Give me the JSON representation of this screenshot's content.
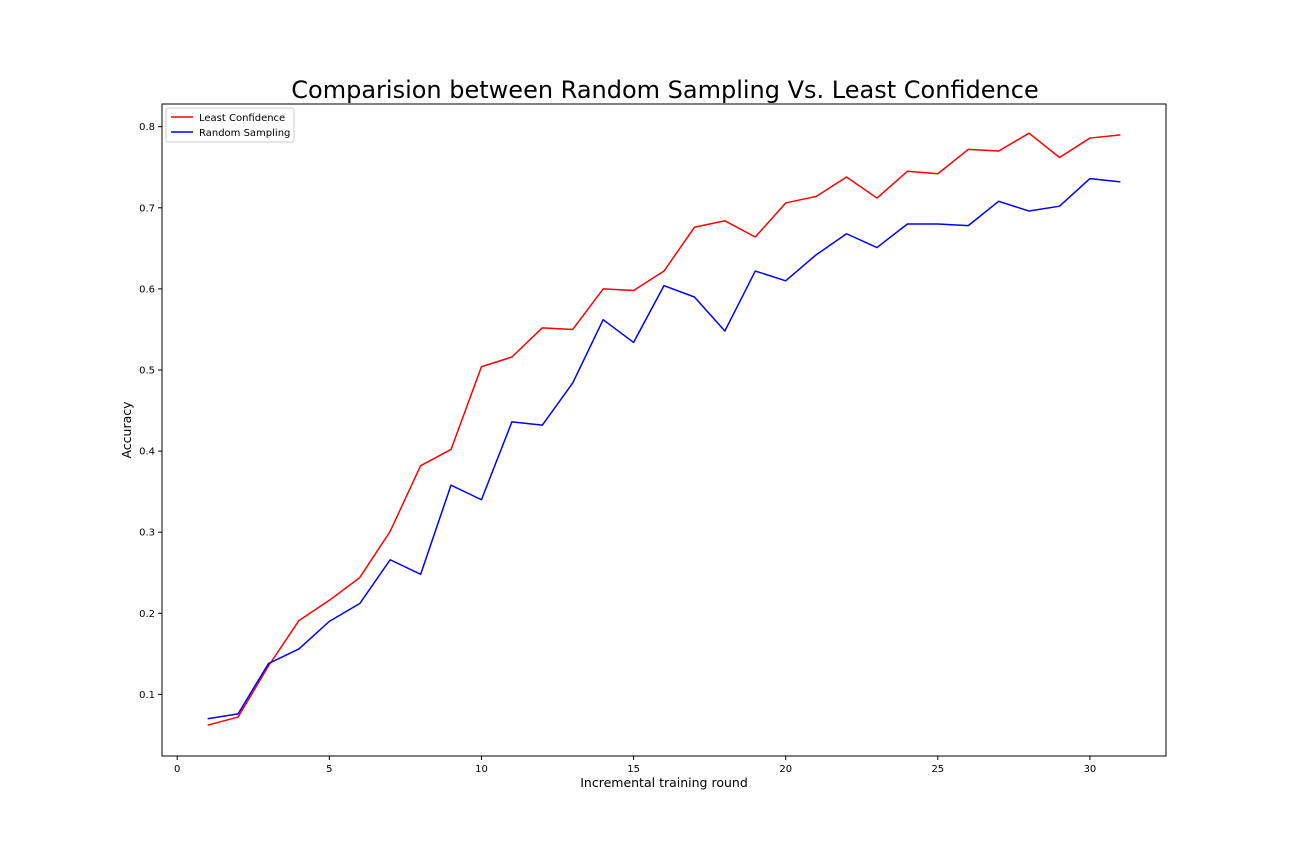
{
  "chart_data": {
    "type": "line",
    "title": "Comparision between Random Sampling Vs. Least Confidence",
    "xlabel": "Incremental training round",
    "ylabel": "Accuracy",
    "xlim": [
      -0.5,
      32.5
    ],
    "ylim": [
      0.024,
      0.828
    ],
    "xticks": [
      0,
      5,
      10,
      15,
      20,
      25,
      30
    ],
    "yticks": [
      0.1,
      0.2,
      0.3,
      0.4,
      0.5,
      0.6,
      0.7,
      0.8
    ],
    "grid": false,
    "legend_position": "top-left",
    "x": [
      1,
      2,
      3,
      4,
      5,
      6,
      7,
      8,
      9,
      10,
      11,
      12,
      13,
      14,
      15,
      16,
      17,
      18,
      19,
      20,
      21,
      22,
      23,
      24,
      25,
      26,
      27,
      28,
      29,
      30,
      31
    ],
    "series": [
      {
        "name": "Least Confidence",
        "color": "#ff0000",
        "values": [
          0.062,
          0.072,
          0.135,
          0.191,
          0.216,
          0.244,
          0.301,
          0.382,
          0.402,
          0.504,
          0.516,
          0.552,
          0.55,
          0.6,
          0.598,
          0.622,
          0.676,
          0.684,
          0.664,
          0.706,
          0.714,
          0.738,
          0.712,
          0.745,
          0.742,
          0.772,
          0.77,
          0.792,
          0.762,
          0.786,
          0.79
        ]
      },
      {
        "name": "Random Sampling",
        "color": "#0000ff",
        "values": [
          0.07,
          0.076,
          0.138,
          0.156,
          0.19,
          0.212,
          0.266,
          0.248,
          0.358,
          0.34,
          0.436,
          0.432,
          0.484,
          0.562,
          0.534,
          0.604,
          0.59,
          0.548,
          0.622,
          0.61,
          0.642,
          0.668,
          0.651,
          0.68,
          0.68,
          0.678,
          0.708,
          0.696,
          0.702,
          0.736,
          0.732
        ]
      }
    ]
  }
}
